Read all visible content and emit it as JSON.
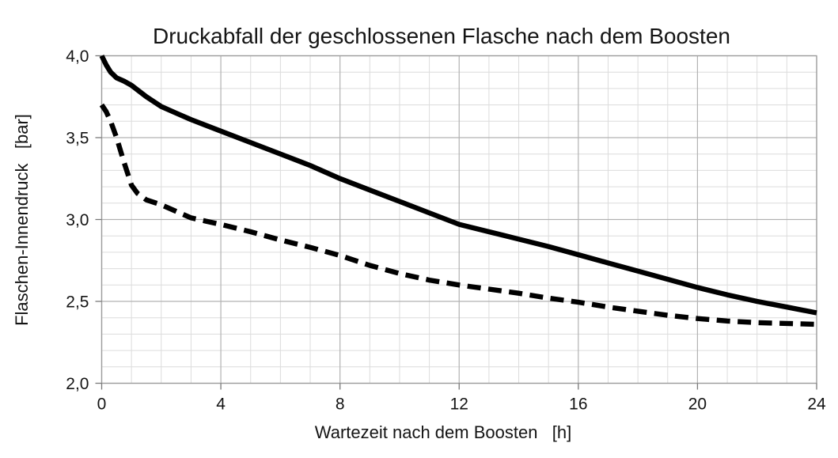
{
  "chart_data": {
    "type": "line",
    "title": "Druckabfall der geschlossenen Flasche nach dem Boosten",
    "xlabel": "Wartezeit nach dem Boosten   [h]",
    "ylabel": "Flaschen-Innendruck   [bar]",
    "xlim": [
      0,
      24
    ],
    "ylim": [
      2.0,
      4.0
    ],
    "x_ticks": [
      0,
      4,
      8,
      12,
      16,
      20,
      24
    ],
    "x_tick_labels": [
      "0",
      "4",
      "8",
      "12",
      "16",
      "20",
      "24"
    ],
    "y_ticks": [
      4.0,
      3.5,
      3.0,
      2.5,
      2.0
    ],
    "y_tick_labels": [
      "4,0",
      "3,5",
      "3,0",
      "2,5",
      "2,0"
    ],
    "grid": {
      "minor_x_step": 1,
      "minor_y_step": 0.1,
      "major_x_step": 4,
      "major_y_step": 0.5,
      "minor_color": "#dcdcdc",
      "major_color": "#b2b2b2",
      "frame_color": "#9c9c9c",
      "tick_color": "#787878"
    },
    "legend": "none",
    "line_color": "#000000",
    "series": [
      {
        "name": "solid-curve",
        "style": "solid",
        "points": [
          [
            0,
            4.0
          ],
          [
            0.15,
            3.945
          ],
          [
            0.3,
            3.9
          ],
          [
            0.5,
            3.865
          ],
          [
            0.75,
            3.845
          ],
          [
            1,
            3.82
          ],
          [
            1.5,
            3.75
          ],
          [
            2,
            3.69
          ],
          [
            2.5,
            3.65
          ],
          [
            3,
            3.61
          ],
          [
            3.5,
            3.575
          ],
          [
            4,
            3.54
          ],
          [
            5,
            3.47
          ],
          [
            6,
            3.4
          ],
          [
            7,
            3.33
          ],
          [
            8,
            3.25
          ],
          [
            9,
            3.18
          ],
          [
            10,
            3.11
          ],
          [
            11,
            3.04
          ],
          [
            12,
            2.97
          ],
          [
            13,
            2.925
          ],
          [
            14,
            2.88
          ],
          [
            15,
            2.835
          ],
          [
            16,
            2.785
          ],
          [
            17,
            2.735
          ],
          [
            18,
            2.685
          ],
          [
            19,
            2.635
          ],
          [
            20,
            2.585
          ],
          [
            21,
            2.54
          ],
          [
            22,
            2.5
          ],
          [
            23,
            2.465
          ],
          [
            24,
            2.43
          ]
        ]
      },
      {
        "name": "dashed-curve",
        "style": "dashed",
        "points": [
          [
            0,
            3.7
          ],
          [
            0.15,
            3.66
          ],
          [
            0.3,
            3.6
          ],
          [
            0.5,
            3.5
          ],
          [
            0.75,
            3.35
          ],
          [
            1,
            3.21
          ],
          [
            1.2,
            3.16
          ],
          [
            1.5,
            3.12
          ],
          [
            2,
            3.09
          ],
          [
            2.5,
            3.05
          ],
          [
            3,
            3.01
          ],
          [
            3.5,
            2.99
          ],
          [
            4,
            2.97
          ],
          [
            5,
            2.925
          ],
          [
            6,
            2.875
          ],
          [
            7,
            2.83
          ],
          [
            8,
            2.78
          ],
          [
            9,
            2.72
          ],
          [
            10,
            2.67
          ],
          [
            11,
            2.63
          ],
          [
            12,
            2.6
          ],
          [
            13,
            2.575
          ],
          [
            14,
            2.55
          ],
          [
            15,
            2.52
          ],
          [
            16,
            2.495
          ],
          [
            17,
            2.465
          ],
          [
            18,
            2.44
          ],
          [
            19,
            2.415
          ],
          [
            20,
            2.395
          ],
          [
            21,
            2.38
          ],
          [
            22,
            2.37
          ],
          [
            23,
            2.365
          ],
          [
            24,
            2.36
          ]
        ]
      }
    ]
  }
}
